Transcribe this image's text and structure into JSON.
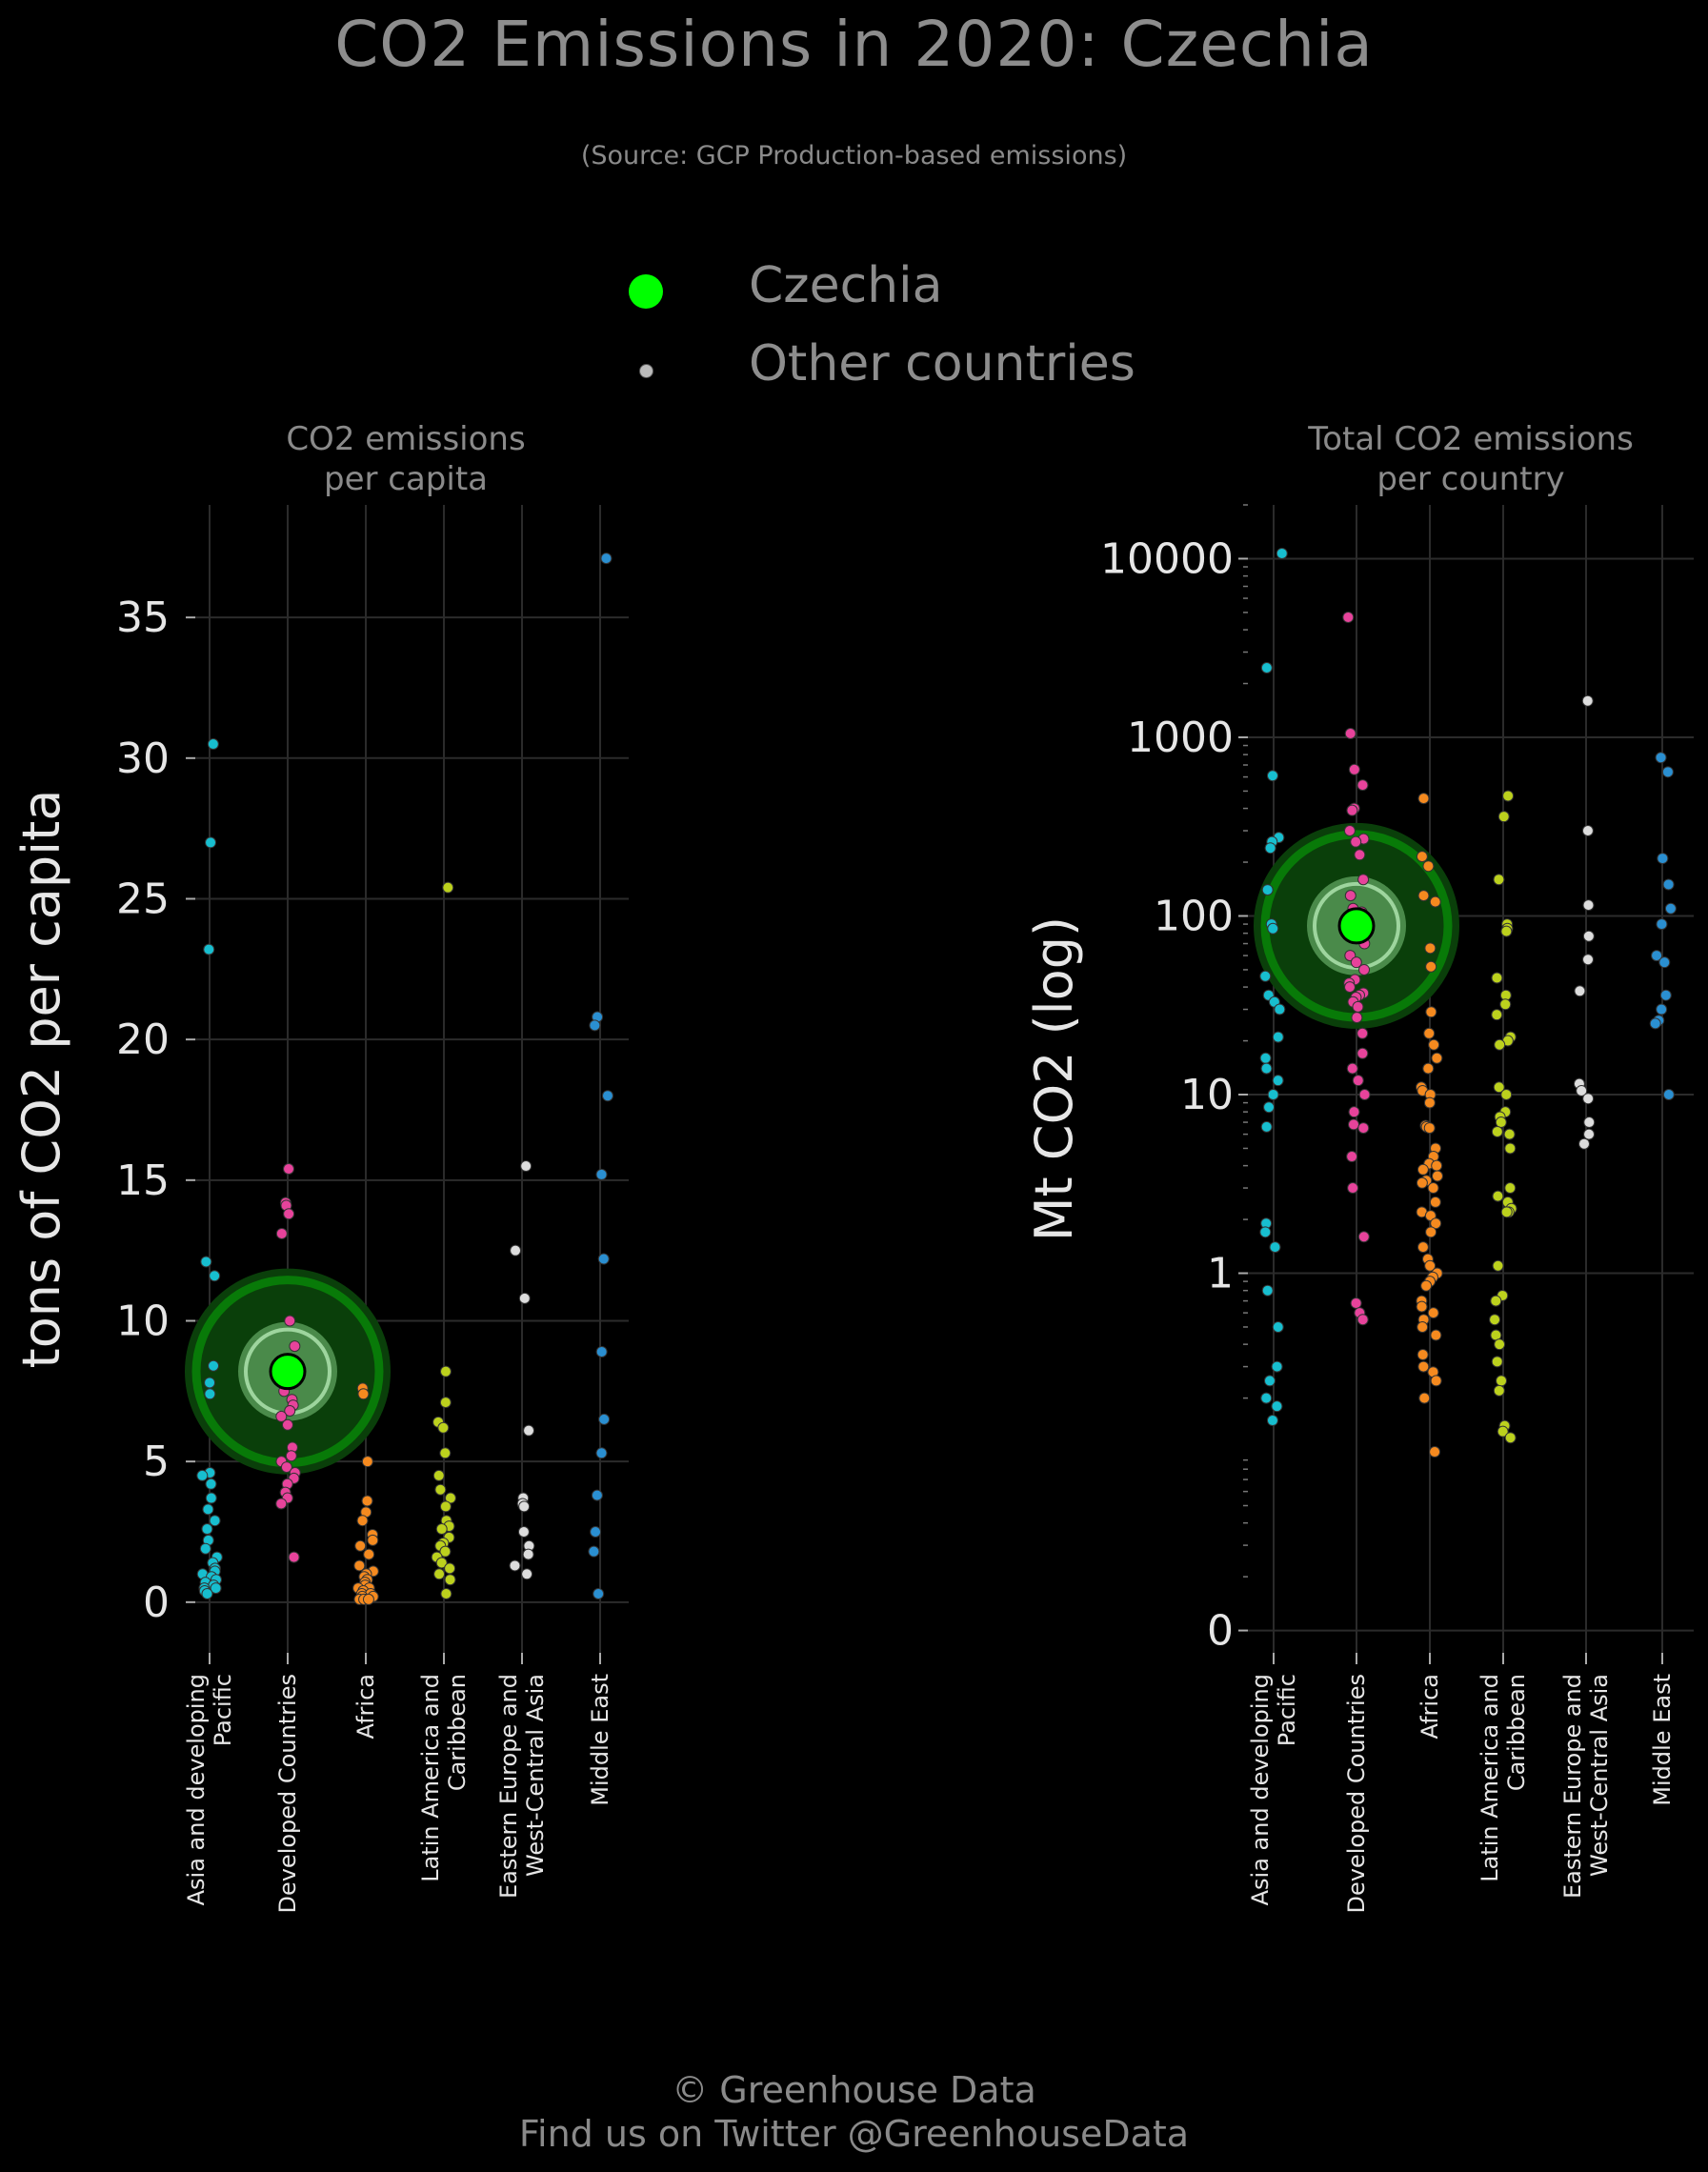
{
  "title": "CO2 Emissions in 2020: Czechia",
  "subtitle": "(Source: GCP Production-based emissions)",
  "legend": {
    "highlight_label": "Czechia",
    "other_label": "Other countries",
    "highlight_color": "#00ff00",
    "other_color": "#bbbbbb"
  },
  "footer": {
    "line1": "© Greenhouse Data",
    "line2": "Find us on Twitter @GreenhouseData"
  },
  "colors": {
    "Asia and developing Pacific": "#17becf",
    "Developed Countries": "#e7439b",
    "Africa": "#f58a1f",
    "Latin America and Caribbean": "#bcd11d",
    "Eastern Europe and West-Central Asia": "#dddddd",
    "Middle East": "#2a8fd1"
  },
  "chart_data": [
    {
      "type": "scatter",
      "title": "CO2 emissions\nper capita",
      "ylabel": "tons of CO2 per capita",
      "yscale": "linear",
      "ylim": [
        -1.8,
        39
      ],
      "yticks": [
        0,
        5,
        10,
        15,
        20,
        25,
        30,
        35
      ],
      "ytick_labels": [
        "0",
        "5",
        "10",
        "15",
        "20",
        "25",
        "30",
        "35"
      ],
      "categories": [
        "Asia and developing\nPacific",
        "Developed Countries",
        "Africa",
        "Latin America and\nCaribbean",
        "Eastern Europe and\nWest-Central Asia",
        "Middle East"
      ],
      "category_keys": [
        "Asia and developing Pacific",
        "Developed Countries",
        "Africa",
        "Latin America and Caribbean",
        "Eastern Europe and West-Central Asia",
        "Middle East"
      ],
      "grid": true,
      "highlight": {
        "name": "Czechia",
        "category": "Developed Countries",
        "value": 8.2
      },
      "series": [
        {
          "category": "Asia and developing Pacific",
          "values": [
            30.5,
            27.0,
            23.2,
            12.1,
            11.6,
            8.4,
            7.8,
            7.4,
            4.6,
            4.5,
            4.2,
            3.7,
            3.3,
            2.9,
            2.6,
            2.2,
            1.9,
            1.6,
            1.4,
            1.2,
            1.1,
            1.0,
            0.9,
            0.8,
            0.7,
            0.6,
            0.5,
            0.5,
            0.4,
            0.3
          ]
        },
        {
          "category": "Developed Countries",
          "values": [
            15.4,
            14.2,
            14.1,
            13.8,
            13.1,
            10.0,
            9.1,
            7.9,
            7.5,
            7.2,
            7.0,
            6.8,
            6.6,
            6.3,
            5.5,
            5.2,
            5.0,
            4.8,
            4.6,
            4.4,
            4.2,
            3.9,
            3.7,
            3.5,
            1.6
          ]
        },
        {
          "category": "Africa",
          "values": [
            7.6,
            7.4,
            5.0,
            3.6,
            3.2,
            2.9,
            2.4,
            2.2,
            2.0,
            1.7,
            1.3,
            1.1,
            1.0,
            0.9,
            0.8,
            0.7,
            0.6,
            0.5,
            0.5,
            0.4,
            0.3,
            0.3,
            0.2,
            0.2,
            0.1,
            0.1,
            0.1,
            0.1
          ]
        },
        {
          "category": "Latin America and Caribbean",
          "values": [
            25.4,
            8.2,
            7.1,
            6.4,
            6.2,
            5.3,
            4.5,
            4.0,
            3.7,
            3.4,
            2.9,
            2.7,
            2.6,
            2.3,
            2.1,
            2.0,
            1.8,
            1.6,
            1.4,
            1.2,
            1.0,
            0.8,
            0.3
          ]
        },
        {
          "category": "Eastern Europe and West-Central Asia",
          "values": [
            15.5,
            12.5,
            10.8,
            6.1,
            3.7,
            3.5,
            3.4,
            2.5,
            2.0,
            1.7,
            1.3,
            1.0
          ]
        },
        {
          "category": "Middle East",
          "values": [
            37.1,
            20.8,
            20.5,
            18.0,
            15.2,
            12.2,
            8.9,
            6.5,
            5.3,
            3.8,
            2.5,
            1.8,
            0.3
          ]
        }
      ]
    },
    {
      "type": "scatter",
      "title": "Total CO2 emissions\nper country",
      "ylabel": "Mt CO2 (log)",
      "yscale": "log",
      "ylim": [
        0.0075,
        20000
      ],
      "yticks": [
        0.01,
        1,
        10,
        100,
        1000,
        10000
      ],
      "ytick_labels": [
        "0",
        "1",
        "10",
        "100",
        "1000",
        "10000"
      ],
      "categories": [
        "Asia and developing\nPacific",
        "Developed Countries",
        "Africa",
        "Latin America and\nCaribbean",
        "Eastern Europe and\nWest-Central Asia",
        "Middle East"
      ],
      "category_keys": [
        "Asia and developing Pacific",
        "Developed Countries",
        "Africa",
        "Latin America and Caribbean",
        "Eastern Europe and West-Central Asia",
        "Middle East"
      ],
      "grid": true,
      "highlight": {
        "name": "Czechia",
        "category": "Developed Countries",
        "value": 88
      },
      "series": [
        {
          "category": "Asia and developing Pacific",
          "values": [
            10700,
            2450,
            610,
            275,
            260,
            240,
            140,
            90,
            85,
            46,
            36,
            33,
            30,
            21,
            16,
            14,
            12,
            10,
            8.5,
            6.6,
            1.9,
            1.7,
            1.4,
            0.8,
            0.5,
            0.3,
            0.25,
            0.2,
            0.18,
            0.15
          ]
        },
        {
          "category": "Developed Countries",
          "values": [
            4700,
            1050,
            660,
            540,
            400,
            390,
            300,
            270,
            260,
            220,
            160,
            130,
            110,
            105,
            100,
            96,
            90,
            85,
            80,
            75,
            70,
            60,
            55,
            50,
            44,
            42,
            40,
            37,
            36,
            35,
            33,
            31,
            27,
            22,
            17,
            14,
            12,
            10,
            8,
            6.8,
            6.5,
            4.5,
            3.0,
            1.6,
            0.68,
            0.6,
            0.55
          ]
        },
        {
          "category": "Africa",
          "values": [
            455,
            215,
            190,
            130,
            120,
            66,
            52,
            29,
            22,
            19,
            16,
            14,
            11,
            10.5,
            10,
            9,
            6.7,
            6.6,
            6.5,
            5,
            4.5,
            4.1,
            4,
            3.8,
            3.5,
            3.3,
            3.2,
            3,
            2.5,
            2.2,
            2.1,
            1.9,
            1.7,
            1.4,
            1.2,
            1.1,
            1.0,
            0.95,
            0.9,
            0.85,
            0.7,
            0.65,
            0.6,
            0.55,
            0.5,
            0.45,
            0.35,
            0.3,
            0.28,
            0.25,
            0.2,
            0.1
          ]
        },
        {
          "category": "Latin America and Caribbean",
          "values": [
            470,
            360,
            160,
            90,
            85,
            82,
            45,
            36,
            32,
            28,
            21,
            20,
            19,
            11,
            10,
            8,
            7.5,
            7,
            6.2,
            6,
            5,
            3,
            2.7,
            2.5,
            2.3,
            2.2,
            2.2,
            1.1,
            0.75,
            0.7,
            0.55,
            0.45,
            0.4,
            0.32,
            0.25,
            0.22,
            0.14,
            0.13,
            0.12
          ]
        },
        {
          "category": "Eastern Europe and West-Central Asia",
          "values": [
            1600,
            300,
            115,
            77,
            57,
            38,
            11.5,
            10.5,
            9.5,
            7,
            6,
            5.3
          ]
        },
        {
          "category": "Middle East",
          "values": [
            770,
            640,
            210,
            150,
            110,
            90,
            60,
            55,
            36,
            30,
            26,
            25,
            10
          ]
        }
      ]
    }
  ]
}
